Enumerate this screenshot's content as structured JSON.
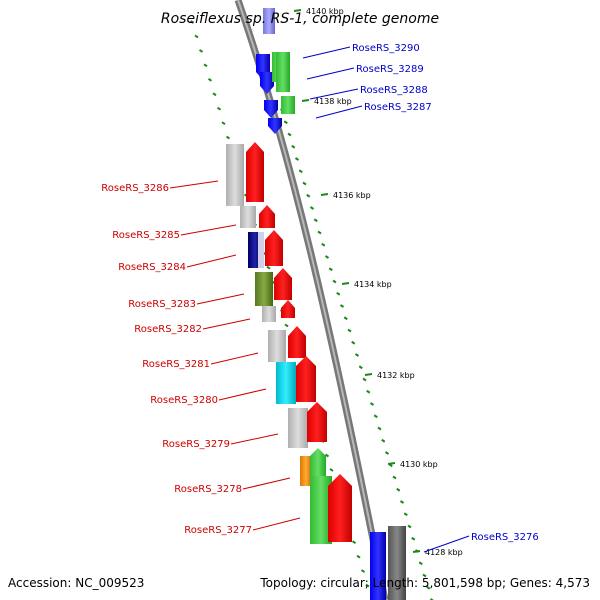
{
  "title": "Roseiflexus sp. RS-1, complete genome",
  "accession": "Accession: NC_009523",
  "genome_stats": "Topology: circular; Length: 5,801,598 bp; Genes: 4,573",
  "colors": {
    "forward_label": "#0000cc",
    "reverse_label": "#cc0000",
    "tick": "#1a8a1a",
    "backbone": "#888888"
  },
  "scale_labels": [
    "4140 kbp",
    "4138 kbp",
    "4136 kbp",
    "4134 kbp",
    "4132 kbp",
    "4130 kbp",
    "4128 kbp"
  ],
  "forward_genes": [
    "RoseRS_3290",
    "RoseRS_3289",
    "RoseRS_3288",
    "RoseRS_3287",
    "RoseRS_3276"
  ],
  "reverse_genes": [
    "RoseRS_3286",
    "RoseRS_3285",
    "RoseRS_3284",
    "RoseRS_3283",
    "RoseRS_3282",
    "RoseRS_3281",
    "RoseRS_3280",
    "RoseRS_3279",
    "RoseRS_3278",
    "RoseRS_3277"
  ]
}
